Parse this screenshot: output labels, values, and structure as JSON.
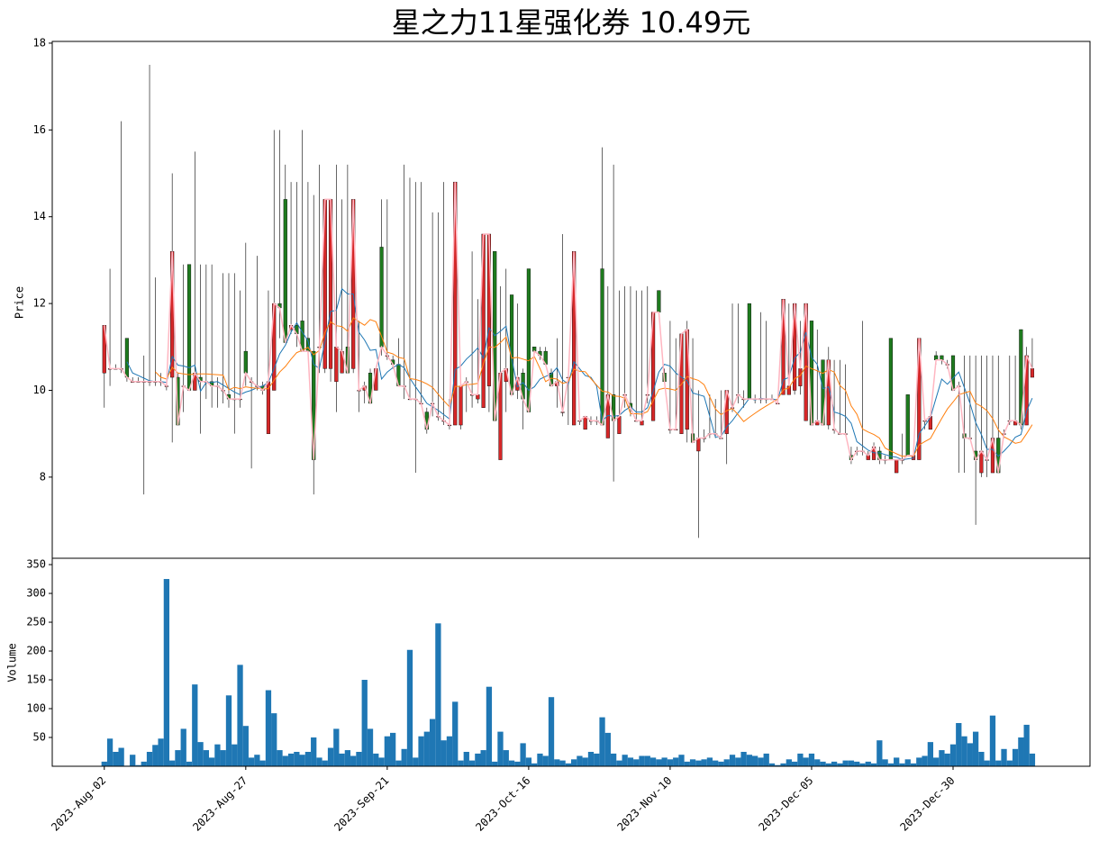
{
  "chart_data": [
    {
      "type": "candlestick",
      "title": "星之力11星强化券  10.49元",
      "ylabel": "Price",
      "up_color": "#d62728",
      "down_color": "#1e7b1e",
      "close_line_color": "#ffb6c1",
      "mav": [
        {
          "window": 5,
          "color": "#1f77b4"
        },
        {
          "window": 10,
          "color": "#ff7f0e"
        }
      ],
      "ylim": [
        6.13,
        18.04
      ],
      "yticks": [
        8,
        10,
        12,
        14,
        16,
        18
      ],
      "xlim": [
        -9.2,
        174.2
      ],
      "ohlc": [
        [
          10.4,
          11.5,
          9.6,
          11.5
        ],
        [
          10.5,
          12.8,
          10.1,
          10.5
        ],
        [
          10.5,
          10.6,
          10.5,
          10.5
        ],
        [
          10.5,
          16.2,
          10.4,
          10.5
        ],
        [
          11.2,
          11.2,
          10.2,
          10.3
        ],
        [
          10.2,
          10.3,
          10.2,
          10.2
        ],
        [
          10.2,
          10.3,
          10.2,
          10.2
        ],
        [
          10.2,
          10.8,
          7.6,
          10.2
        ],
        [
          10.2,
          17.5,
          10.1,
          10.2
        ],
        [
          10.2,
          12.6,
          10.1,
          10.2
        ],
        [
          10.2,
          10.4,
          10.1,
          10.2
        ],
        [
          10.1,
          10.2,
          10.0,
          10.1
        ],
        [
          10.3,
          15.0,
          8.8,
          13.2
        ],
        [
          10.3,
          10.4,
          9.2,
          9.2
        ],
        [
          10.1,
          12.9,
          9.5,
          10.1
        ],
        [
          12.9,
          12.9,
          10.0,
          10.0
        ],
        [
          10.0,
          15.5,
          10.0,
          10.4
        ],
        [
          10.3,
          12.9,
          9.0,
          10.2
        ],
        [
          10.2,
          12.9,
          9.8,
          10.2
        ],
        [
          10.2,
          12.9,
          9.6,
          10.1
        ],
        [
          10.1,
          10.3,
          9.6,
          10.1
        ],
        [
          10.0,
          12.7,
          9.7,
          10.0
        ],
        [
          9.9,
          12.7,
          9.6,
          9.8
        ],
        [
          9.8,
          12.7,
          9.0,
          9.8
        ],
        [
          9.8,
          12.3,
          9.6,
          9.8
        ],
        [
          10.9,
          13.4,
          10.1,
          10.4
        ],
        [
          10.2,
          10.3,
          8.2,
          10.2
        ],
        [
          10.1,
          13.1,
          10.0,
          10.1
        ],
        [
          10.1,
          10.2,
          9.9,
          10.0
        ],
        [
          9.0,
          12.3,
          9.0,
          10.2
        ],
        [
          10.0,
          16.0,
          10.0,
          12.0
        ],
        [
          12.0,
          16.0,
          11.2,
          11.9
        ],
        [
          14.4,
          15.2,
          11.1,
          11.1
        ],
        [
          11.4,
          14.8,
          11.3,
          11.5
        ],
        [
          11.5,
          14.8,
          11.0,
          11.3
        ],
        [
          11.6,
          16.0,
          11.0,
          10.9
        ],
        [
          11.2,
          14.8,
          10.8,
          10.9
        ],
        [
          10.9,
          14.5,
          7.6,
          8.4
        ],
        [
          11.0,
          15.2,
          10.4,
          11.0
        ],
        [
          10.5,
          14.4,
          10.4,
          14.4
        ],
        [
          10.5,
          14.4,
          10.2,
          14.4
        ],
        [
          10.2,
          15.2,
          9.5,
          11.0
        ],
        [
          10.4,
          14.4,
          10.4,
          10.9
        ],
        [
          11.0,
          15.2,
          10.4,
          10.4
        ],
        [
          10.5,
          14.4,
          10.4,
          14.4
        ],
        [
          10.0,
          11.6,
          9.5,
          10.0
        ],
        [
          10.0,
          10.2,
          9.7,
          10.1
        ],
        [
          10.4,
          10.5,
          9.7,
          9.7
        ],
        [
          10.0,
          10.5,
          10.0,
          10.5
        ],
        [
          13.3,
          14.4,
          10.8,
          11.0
        ],
        [
          10.8,
          14.4,
          10.7,
          10.8
        ],
        [
          10.7,
          10.8,
          10.5,
          10.6
        ],
        [
          10.6,
          11.2,
          10.1,
          10.1
        ],
        [
          10.1,
          15.2,
          9.8,
          10.1
        ],
        [
          9.8,
          14.9,
          9.8,
          9.8
        ],
        [
          9.8,
          14.8,
          8.1,
          9.8
        ],
        [
          9.7,
          14.8,
          9.7,
          9.7
        ],
        [
          9.5,
          9.6,
          9.0,
          9.1
        ],
        [
          9.7,
          14.1,
          9.4,
          9.7
        ],
        [
          9.4,
          14.1,
          9.3,
          9.4
        ],
        [
          9.3,
          14.8,
          9.2,
          9.3
        ],
        [
          9.2,
          9.8,
          9.1,
          9.2
        ],
        [
          9.2,
          14.8,
          9.2,
          14.8
        ],
        [
          9.2,
          10.1,
          9.1,
          10.1
        ],
        [
          10.2,
          10.3,
          9.5,
          10.2
        ],
        [
          9.9,
          13.2,
          9.6,
          9.9
        ],
        [
          9.8,
          12.1,
          9.7,
          9.9
        ],
        [
          9.6,
          13.6,
          9.6,
          13.6
        ],
        [
          10.1,
          13.6,
          9.5,
          13.6
        ],
        [
          13.2,
          13.2,
          9.3,
          9.3
        ],
        [
          8.4,
          12.4,
          8.4,
          10.4
        ],
        [
          10.2,
          12.8,
          9.5,
          10.5
        ],
        [
          12.2,
          12.2,
          9.9,
          9.9
        ],
        [
          10.0,
          12.0,
          9.8,
          10.3
        ],
        [
          10.4,
          10.5,
          9.1,
          9.8
        ],
        [
          12.8,
          12.8,
          9.5,
          9.5
        ],
        [
          11.0,
          11.0,
          10.8,
          10.9
        ],
        [
          10.9,
          11.0,
          10.7,
          10.8
        ],
        [
          10.9,
          11.0,
          10.6,
          10.6
        ],
        [
          10.4,
          10.5,
          10.1,
          10.1
        ],
        [
          10.1,
          11.2,
          9.6,
          10.2
        ],
        [
          9.5,
          13.6,
          9.4,
          9.5
        ],
        [
          10.3,
          10.4,
          9.2,
          10.3
        ],
        [
          9.2,
          13.2,
          9.2,
          13.2
        ],
        [
          9.3,
          9.4,
          9.2,
          9.3
        ],
        [
          9.1,
          9.4,
          9.1,
          9.4
        ],
        [
          9.3,
          9.4,
          9.2,
          9.3
        ],
        [
          9.3,
          9.4,
          9.2,
          9.3
        ],
        [
          12.8,
          15.6,
          9.2,
          9.2
        ],
        [
          8.9,
          12.4,
          8.9,
          9.9
        ],
        [
          9.9,
          15.2,
          7.9,
          9.3
        ],
        [
          9.0,
          12.3,
          9.0,
          9.4
        ],
        [
          9.9,
          12.4,
          9.6,
          9.9
        ],
        [
          9.7,
          12.4,
          9.4,
          9.6
        ],
        [
          9.3,
          12.3,
          9.3,
          9.3
        ],
        [
          9.2,
          12.3,
          9.2,
          9.3
        ],
        [
          9.9,
          12.4,
          9.7,
          9.9
        ],
        [
          9.3,
          11.8,
          9.3,
          11.8
        ],
        [
          12.3,
          12.3,
          11.8,
          11.8
        ],
        [
          10.4,
          10.5,
          10.2,
          10.2
        ],
        [
          9.1,
          11.6,
          9.0,
          9.1
        ],
        [
          9.1,
          11.2,
          9.1,
          9.1
        ],
        [
          9.0,
          11.3,
          9.0,
          11.3
        ],
        [
          9.1,
          11.6,
          8.8,
          11.4
        ],
        [
          9.0,
          11.2,
          8.8,
          8.8
        ],
        [
          8.6,
          10.0,
          6.6,
          8.9
        ],
        [
          8.9,
          9.1,
          8.8,
          8.9
        ],
        [
          9.0,
          9.9,
          8.9,
          9.0
        ],
        [
          9.0,
          9.8,
          8.9,
          9.0
        ],
        [
          8.9,
          10.0,
          8.9,
          8.9
        ],
        [
          9.0,
          10.0,
          8.3,
          10.0
        ],
        [
          9.6,
          12.0,
          9.5,
          9.6
        ],
        [
          9.9,
          12.0,
          9.7,
          9.9
        ],
        [
          9.8,
          10.0,
          9.6,
          9.8
        ],
        [
          12.0,
          12.0,
          9.8,
          9.8
        ],
        [
          9.8,
          9.9,
          9.7,
          9.8
        ],
        [
          9.8,
          11.8,
          9.7,
          9.8
        ],
        [
          9.8,
          11.6,
          9.7,
          9.8
        ],
        [
          9.8,
          9.9,
          9.8,
          9.8
        ],
        [
          9.7,
          9.8,
          9.7,
          9.7
        ],
        [
          9.9,
          12.1,
          9.9,
          12.1
        ],
        [
          9.9,
          12.0,
          9.9,
          10.1
        ],
        [
          10.0,
          12.0,
          9.9,
          12.0
        ],
        [
          10.1,
          11.6,
          9.9,
          10.5
        ],
        [
          9.3,
          12.0,
          9.3,
          12.0
        ],
        [
          11.6,
          11.6,
          9.2,
          9.2
        ],
        [
          9.2,
          11.4,
          9.2,
          9.3
        ],
        [
          10.7,
          10.7,
          9.2,
          9.2
        ],
        [
          9.2,
          11.0,
          9.1,
          10.7
        ],
        [
          9.1,
          10.7,
          9.0,
          9.1
        ],
        [
          9.0,
          10.7,
          9.0,
          9.0
        ],
        [
          9.0,
          10.6,
          9.0,
          9.0
        ],
        [
          8.5,
          8.7,
          8.3,
          8.4
        ],
        [
          8.6,
          8.7,
          8.5,
          8.6
        ],
        [
          8.6,
          11.6,
          8.5,
          8.6
        ],
        [
          8.4,
          8.6,
          8.4,
          8.5
        ],
        [
          8.4,
          8.8,
          8.4,
          8.7
        ],
        [
          8.6,
          8.7,
          8.3,
          8.4
        ],
        [
          8.4,
          8.5,
          8.3,
          8.4
        ],
        [
          11.2,
          11.2,
          8.4,
          8.4
        ],
        [
          8.1,
          8.4,
          8.1,
          8.4
        ],
        [
          8.4,
          9.0,
          8.3,
          8.4
        ],
        [
          9.9,
          9.9,
          8.5,
          8.5
        ],
        [
          8.4,
          8.6,
          8.4,
          8.5
        ],
        [
          8.4,
          11.2,
          8.4,
          11.2
        ],
        [
          9.3,
          9.4,
          9.1,
          9.3
        ],
        [
          9.1,
          9.4,
          9.1,
          9.4
        ],
        [
          10.8,
          10.9,
          10.6,
          10.7
        ],
        [
          10.8,
          10.8,
          10.6,
          10.7
        ],
        [
          10.6,
          10.7,
          10.5,
          10.6
        ],
        [
          10.8,
          10.8,
          10.0,
          10.0
        ],
        [
          10.1,
          10.2,
          8.1,
          10.1
        ],
        [
          9.0,
          10.8,
          8.1,
          8.9
        ],
        [
          8.9,
          10.8,
          8.9,
          8.9
        ],
        [
          8.6,
          10.8,
          6.9,
          8.4
        ],
        [
          8.1,
          10.8,
          8.0,
          8.6
        ],
        [
          8.4,
          10.8,
          8.0,
          8.4
        ],
        [
          8.1,
          10.8,
          8.1,
          8.9
        ],
        [
          8.9,
          10.8,
          8.1,
          8.1
        ],
        [
          9.0,
          9.1,
          8.9,
          9.0
        ],
        [
          9.3,
          10.8,
          9.2,
          9.3
        ],
        [
          9.2,
          10.8,
          9.2,
          9.3
        ],
        [
          11.4,
          11.4,
          9.1,
          9.2
        ],
        [
          9.2,
          11.0,
          9.2,
          10.8
        ],
        [
          10.3,
          11.2,
          10.3,
          10.5
        ]
      ]
    },
    {
      "type": "bar",
      "ylabel": "Volume",
      "color": "#1f77b4",
      "ylim": [
        0,
        361
      ],
      "yticks": [
        50,
        100,
        150,
        200,
        250,
        300,
        350
      ],
      "xlim": [
        -9.2,
        174.2
      ],
      "xticks": [
        {
          "value": 0,
          "label": "2023-Aug-02"
        },
        {
          "value": 25,
          "label": "2023-Aug-27"
        },
        {
          "value": 50,
          "label": "2023-Sep-21"
        },
        {
          "value": 75,
          "label": "2023-Oct-16"
        },
        {
          "value": 100,
          "label": "2023-Nov-10"
        },
        {
          "value": 125,
          "label": "2023-Dec-05"
        },
        {
          "value": 150,
          "label": "2023-Dec-30"
        }
      ],
      "values": [
        8,
        48,
        25,
        32,
        1,
        20,
        2,
        8,
        25,
        37,
        48,
        325,
        10,
        28,
        65,
        8,
        142,
        42,
        28,
        15,
        38,
        28,
        123,
        38,
        176,
        70,
        15,
        20,
        10,
        132,
        92,
        28,
        18,
        22,
        25,
        20,
        25,
        50,
        15,
        10,
        32,
        65,
        22,
        28,
        18,
        25,
        150,
        65,
        22,
        15,
        52,
        58,
        10,
        30,
        202,
        15,
        52,
        60,
        82,
        248,
        45,
        52,
        112,
        10,
        25,
        10,
        22,
        28,
        138,
        8,
        60,
        28,
        10,
        8,
        40,
        15,
        5,
        22,
        18,
        120,
        12,
        10,
        5,
        12,
        18,
        15,
        25,
        22,
        85,
        58,
        22,
        10,
        20,
        15,
        12,
        18,
        18,
        15,
        12,
        15,
        12,
        15,
        20,
        8,
        12,
        10,
        12,
        15,
        10,
        8,
        12,
        20,
        15,
        25,
        20,
        18,
        15,
        22,
        5,
        2,
        5,
        12,
        8,
        22,
        15,
        22,
        12,
        8,
        5,
        8,
        5,
        10,
        10,
        8,
        5,
        8,
        5,
        45,
        12,
        5,
        15,
        5,
        12,
        5,
        15,
        18,
        42,
        15,
        28,
        22,
        38,
        75,
        52,
        40,
        60,
        25,
        10,
        88,
        10,
        30,
        10,
        30,
        50,
        72,
        22
      ]
    }
  ]
}
